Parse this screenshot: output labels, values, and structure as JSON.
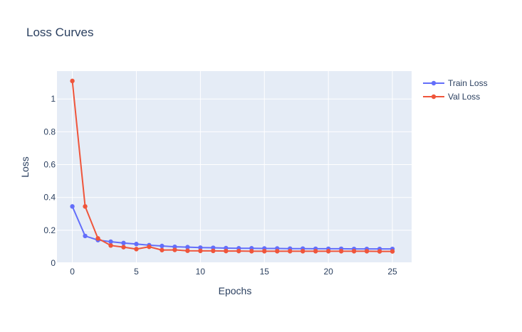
{
  "chart_data": {
    "type": "line",
    "title": "Loss Curves",
    "xlabel": "Epochs",
    "ylabel": "Loss",
    "xlim": [
      -1.2,
      26.5
    ],
    "ylim": [
      0,
      1.17
    ],
    "xticks": [
      0,
      5,
      10,
      15,
      20,
      25
    ],
    "yticks": [
      0,
      0.2,
      0.4,
      0.6,
      0.8,
      1
    ],
    "ytick_labels": [
      "0",
      "0.2",
      "0.4",
      "0.6",
      "0.8",
      "1"
    ],
    "grid": true,
    "legend_position": "top-right",
    "x": [
      0,
      1,
      2,
      3,
      4,
      5,
      6,
      7,
      8,
      9,
      10,
      11,
      12,
      13,
      14,
      15,
      16,
      17,
      18,
      19,
      20,
      21,
      22,
      23,
      24,
      25
    ],
    "series": [
      {
        "name": "Train Loss",
        "color": "#636efa",
        "values": [
          0.345,
          0.165,
          0.14,
          0.13,
          0.122,
          0.116,
          0.109,
          0.104,
          0.099,
          0.097,
          0.094,
          0.093,
          0.091,
          0.09,
          0.09,
          0.089,
          0.089,
          0.088,
          0.088,
          0.087,
          0.087,
          0.087,
          0.086,
          0.086,
          0.086,
          0.086
        ]
      },
      {
        "name": "Val Loss",
        "color": "#ef553b",
        "values": [
          1.11,
          0.345,
          0.15,
          0.107,
          0.097,
          0.085,
          0.099,
          0.079,
          0.08,
          0.075,
          0.074,
          0.074,
          0.073,
          0.073,
          0.072,
          0.072,
          0.072,
          0.072,
          0.072,
          0.072,
          0.072,
          0.072,
          0.072,
          0.072,
          0.071,
          0.071
        ]
      }
    ]
  }
}
